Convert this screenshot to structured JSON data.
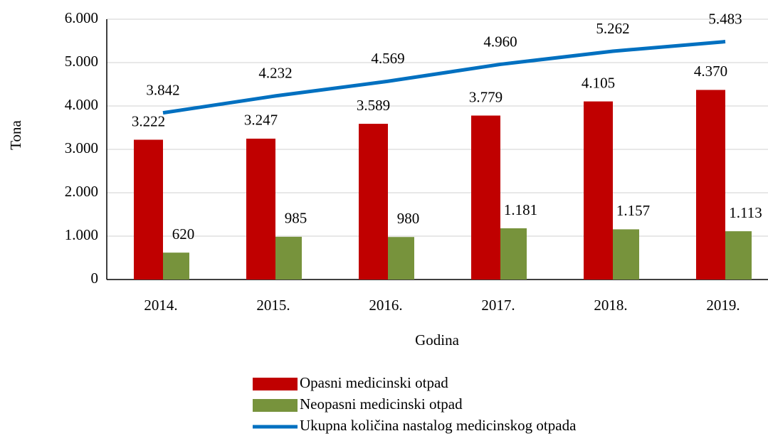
{
  "chart_data": {
    "type": "bar",
    "x_label": "Godina",
    "y_label": "Tona",
    "categories": [
      "2014.",
      "2015.",
      "2016.",
      "2017.",
      "2018.",
      "2019."
    ],
    "ylim": [
      0,
      6000
    ],
    "yticks": [
      0,
      {
        "value": 1000,
        "label": "1.000"
      },
      {
        "value": 2000,
        "label": "2.000"
      },
      {
        "value": 3000,
        "label": "3.000"
      },
      {
        "value": 4000,
        "label": "4.000"
      },
      {
        "value": 5000,
        "label": "5.000"
      },
      {
        "value": 6000,
        "label": "6.000"
      }
    ],
    "grid": true,
    "series": [
      {
        "name": "Opasni medicinski otpad",
        "type": "bar",
        "color": "#c00000",
        "values": [
          3222,
          3247,
          3589,
          3779,
          4105,
          4370
        ],
        "value_labels": [
          "3.222",
          "3.247",
          "3.589",
          "3.779",
          "4.105",
          "4.370"
        ]
      },
      {
        "name": "Neopasni medicinski otpad",
        "type": "bar",
        "color": "#77933c",
        "values": [
          620,
          985,
          980,
          1181,
          1157,
          1113
        ],
        "value_labels": [
          "620",
          "985",
          "980",
          "1.181",
          "1.157",
          "1.113"
        ]
      },
      {
        "name": "Ukupna količina nastalog medicinskog otpada",
        "type": "line",
        "color": "#0070c0",
        "values": [
          3842,
          4232,
          4569,
          4960,
          5262,
          5483
        ],
        "value_labels": [
          "3.842",
          "4.232",
          "4.569",
          "4.960",
          "5.262",
          "5.483"
        ]
      }
    ]
  }
}
